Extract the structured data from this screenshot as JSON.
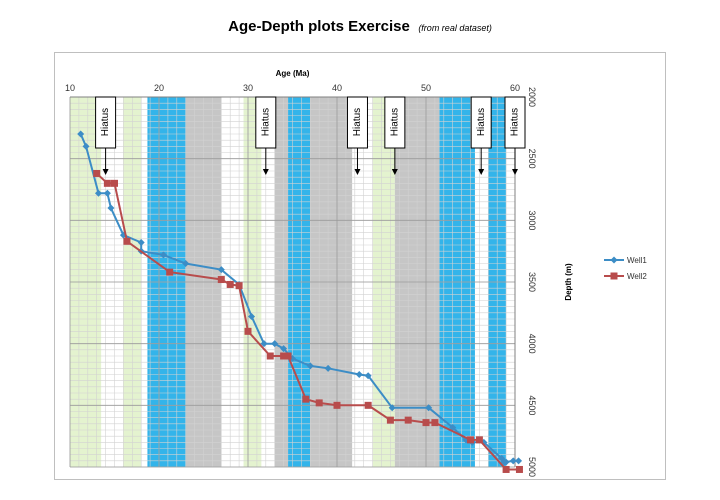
{
  "chart_data": {
    "type": "line",
    "title": "Age-Depth plots Exercise",
    "subtitle": "(from real dataset)",
    "xlabel": "Age (Ma)",
    "ylabel": "Depth (m)",
    "xlim": [
      10,
      60
    ],
    "ylim": [
      2000,
      5000
    ],
    "x_ticks": [
      10,
      20,
      30,
      40,
      50,
      60
    ],
    "y_ticks": [
      2000,
      2500,
      3000,
      3500,
      4000,
      4500,
      5000
    ],
    "x_axis_position": "top",
    "y_axis_position": "right",
    "y_reversed": true,
    "grid": true,
    "legend": "right",
    "series": [
      {
        "name": "Well1",
        "color": "#3c8dc6",
        "marker": "diamond",
        "points": [
          [
            11.2,
            2300
          ],
          [
            11.8,
            2400
          ],
          [
            13.2,
            2780
          ],
          [
            14.2,
            2780
          ],
          [
            14.6,
            2900
          ],
          [
            16,
            3120
          ],
          [
            18,
            3180
          ],
          [
            18,
            3250
          ],
          [
            20.5,
            3280
          ],
          [
            23,
            3350
          ],
          [
            27,
            3400
          ],
          [
            29,
            3520
          ],
          [
            30.4,
            3780
          ],
          [
            31.8,
            4000
          ],
          [
            33,
            4000
          ],
          [
            34,
            4040
          ],
          [
            35,
            4120
          ],
          [
            37,
            4180
          ],
          [
            39,
            4200
          ],
          [
            42.5,
            4250
          ],
          [
            43.5,
            4260
          ],
          [
            46.2,
            4520
          ],
          [
            50.3,
            4520
          ],
          [
            53,
            4680
          ],
          [
            54.5,
            4780
          ],
          [
            55.2,
            4800
          ],
          [
            56.5,
            4800
          ],
          [
            58.5,
            4930
          ],
          [
            58.8,
            4960
          ],
          [
            59,
            4960
          ],
          [
            59.8,
            4950
          ],
          [
            60.4,
            4950
          ]
        ]
      },
      {
        "name": "Well2",
        "color": "#b84c4c",
        "marker": "square",
        "points": [
          [
            13,
            2620
          ],
          [
            14.2,
            2700
          ],
          [
            15,
            2700
          ],
          [
            16.4,
            3170
          ],
          [
            21.2,
            3420
          ],
          [
            27,
            3480
          ],
          [
            28,
            3520
          ],
          [
            29,
            3530
          ],
          [
            30,
            3900
          ],
          [
            32.5,
            4100
          ],
          [
            34,
            4100
          ],
          [
            34.5,
            4100
          ],
          [
            36.5,
            4450
          ],
          [
            38,
            4480
          ],
          [
            40,
            4500
          ],
          [
            43.5,
            4500
          ],
          [
            46,
            4620
          ],
          [
            48,
            4620
          ],
          [
            50,
            4640
          ],
          [
            51,
            4640
          ],
          [
            55,
            4780
          ],
          [
            56,
            4780
          ],
          [
            59,
            5020
          ],
          [
            60.5,
            5020
          ]
        ]
      }
    ],
    "green_bands": [
      [
        10,
        13.5
      ],
      [
        16,
        18
      ],
      [
        24.5,
        25
      ],
      [
        29.5,
        31.5
      ],
      [
        44,
        46.5
      ]
    ],
    "blue_bands": [
      [
        18.7,
        23
      ],
      [
        34.5,
        37
      ],
      [
        51.5,
        55.5
      ],
      [
        57,
        59
      ]
    ],
    "gray_bands": [
      [
        23,
        27
      ],
      [
        33,
        34.5
      ],
      [
        37,
        41.7
      ],
      [
        46.5,
        51.5
      ]
    ],
    "annotations": [
      {
        "text": "Hiatus",
        "x": 14
      },
      {
        "text": "Hiatus",
        "x": 32
      },
      {
        "text": "Hiatus",
        "x": 42.3
      },
      {
        "text": "Hiatus",
        "x": 46.5
      },
      {
        "text": "Hiatus",
        "x": 56.2
      },
      {
        "text": "Hiatus",
        "x": 60
      }
    ]
  }
}
